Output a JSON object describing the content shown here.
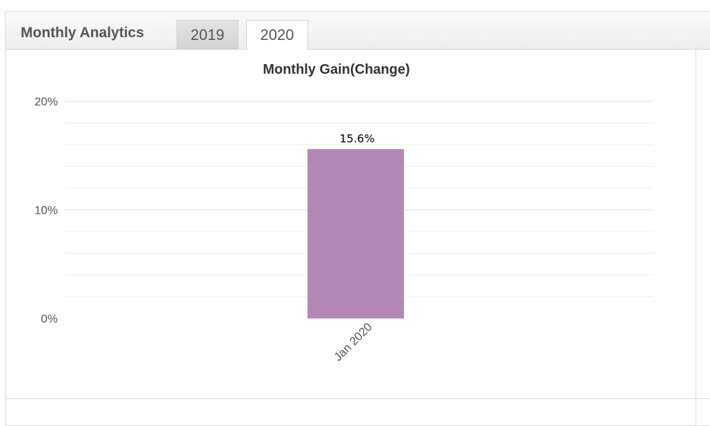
{
  "widget": {
    "title": "Monthly Analytics",
    "tabs": [
      {
        "label": "2019",
        "active": false
      },
      {
        "label": "2020",
        "active": true
      }
    ]
  },
  "chart_data": {
    "type": "bar",
    "title": "Monthly Gain(Change)",
    "categories": [
      "Jan 2020"
    ],
    "values": [
      15.6
    ],
    "data_labels": [
      "15.6%"
    ],
    "ylim": [
      0,
      20
    ],
    "yticks": [
      "0%",
      "10%",
      "20%"
    ],
    "xlabel": "",
    "ylabel": "",
    "grid": true,
    "bar_color": "#b387b5",
    "legend": "none"
  }
}
